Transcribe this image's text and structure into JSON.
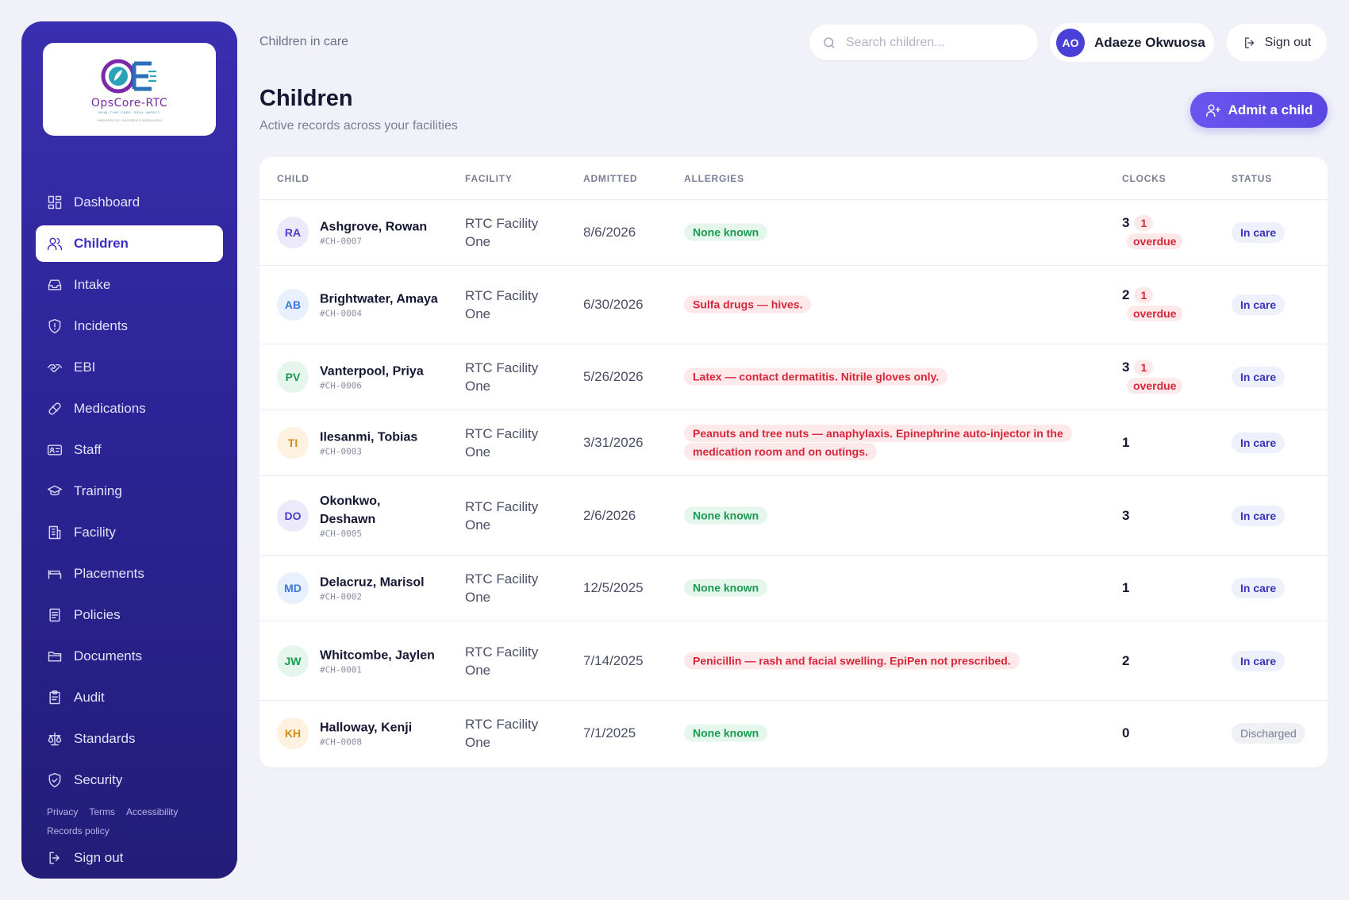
{
  "app": {
    "logo_name": "OpsCore-RTC",
    "logo_tagline": "REAL TIME CARE. REAL IMPACT",
    "logo_sub": "THERAPEUTIC CHILDREN'S ENDEAVORS"
  },
  "sidebar": {
    "items": [
      {
        "label": "Dashboard",
        "icon": "dashboard-icon",
        "active": false
      },
      {
        "label": "Children",
        "icon": "users-icon",
        "active": true
      },
      {
        "label": "Intake",
        "icon": "inbox-icon",
        "active": false
      },
      {
        "label": "Incidents",
        "icon": "shield-alert-icon",
        "active": false
      },
      {
        "label": "EBI",
        "icon": "handshake-icon",
        "active": false
      },
      {
        "label": "Medications",
        "icon": "pill-icon",
        "active": false
      },
      {
        "label": "Staff",
        "icon": "id-card-icon",
        "active": false
      },
      {
        "label": "Training",
        "icon": "graduation-cap-icon",
        "active": false
      },
      {
        "label": "Facility",
        "icon": "building-icon",
        "active": false
      },
      {
        "label": "Placements",
        "icon": "bed-icon",
        "active": false
      },
      {
        "label": "Policies",
        "icon": "document-icon",
        "active": false
      },
      {
        "label": "Documents",
        "icon": "folder-icon",
        "active": false
      },
      {
        "label": "Audit",
        "icon": "clipboard-icon",
        "active": false
      },
      {
        "label": "Standards",
        "icon": "scale-icon",
        "active": false
      },
      {
        "label": "Security",
        "icon": "shield-check-icon",
        "active": false
      }
    ],
    "footer_links": [
      "Privacy",
      "Terms",
      "Accessibility",
      "Records policy"
    ],
    "signout_label": "Sign out"
  },
  "header": {
    "breadcrumb": "Children in care",
    "search_placeholder": "Search children...",
    "user_initials": "AO",
    "user_name": "Adaeze Okwuosa",
    "signout_label": "Sign out"
  },
  "page": {
    "title": "Children",
    "subtitle": "Active records across your facilities",
    "admit_label": "Admit a child"
  },
  "table": {
    "columns": [
      "CHILD",
      "FACILITY",
      "ADMITTED",
      "ALLERGIES",
      "CLOCKS",
      "STATUS"
    ],
    "rows": [
      {
        "initials": "RA",
        "name": "Ashgrove, Rowan",
        "id": "#CH-0007",
        "facility": "RTC Facility One",
        "admitted": "8/6/2026",
        "allergy": "None known",
        "allergy_type": "none",
        "clocks": "3",
        "overdue": "1 overdue",
        "status": "In care",
        "status_type": "incare",
        "avatar_bg": "#ece9fb",
        "avatar_fg": "#4a3fc4"
      },
      {
        "initials": "AB",
        "name": "Brightwater, Amaya",
        "id": "#CH-0004",
        "facility": "RTC Facility One",
        "admitted": "6/30/2026",
        "allergy": "Sulfa drugs — hives.",
        "allergy_type": "alert",
        "clocks": "2",
        "overdue": "1 overdue",
        "status": "In care",
        "status_type": "incare",
        "avatar_bg": "#e7f0fc",
        "avatar_fg": "#3b7ad8"
      },
      {
        "initials": "PV",
        "name": "Vanterpool, Priya",
        "id": "#CH-0006",
        "facility": "RTC Facility One",
        "admitted": "5/26/2026",
        "allergy": "Latex — contact dermatitis. Nitrile gloves only.",
        "allergy_type": "alert",
        "clocks": "3",
        "overdue": "1 overdue",
        "status": "In care",
        "status_type": "incare",
        "avatar_bg": "#e5f6ec",
        "avatar_fg": "#1c9a52"
      },
      {
        "initials": "TI",
        "name": "Ilesanmi, Tobias",
        "id": "#CH-0003",
        "facility": "RTC Facility One",
        "admitted": "3/31/2026",
        "allergy": "Peanuts and tree nuts — anaphylaxis. Epinephrine auto-injector in the medication room and on outings.",
        "allergy_type": "alert",
        "clocks": "1",
        "overdue": "",
        "status": "In care",
        "status_type": "incare",
        "avatar_bg": "#fdf1df",
        "avatar_fg": "#d68a1c"
      },
      {
        "initials": "DO",
        "name": "Okonkwo, Deshawn",
        "id": "#CH-0005",
        "facility": "RTC Facility One",
        "admitted": "2/6/2026",
        "allergy": "None known",
        "allergy_type": "none",
        "clocks": "3",
        "overdue": "",
        "status": "In care",
        "status_type": "incare",
        "avatar_bg": "#ece9fb",
        "avatar_fg": "#4a3fc4"
      },
      {
        "initials": "MD",
        "name": "Delacruz, Marisol",
        "id": "#CH-0002",
        "facility": "RTC Facility One",
        "admitted": "12/5/2025",
        "allergy": "None known",
        "allergy_type": "none",
        "clocks": "1",
        "overdue": "",
        "status": "In care",
        "status_type": "incare",
        "avatar_bg": "#e7f0fc",
        "avatar_fg": "#3b7ad8"
      },
      {
        "initials": "JW",
        "name": "Whitcombe, Jaylen",
        "id": "#CH-0001",
        "facility": "RTC Facility One",
        "admitted": "7/14/2025",
        "allergy": "Penicillin — rash and facial swelling. EpiPen not prescribed.",
        "allergy_type": "alert",
        "clocks": "2",
        "overdue": "",
        "status": "In care",
        "status_type": "incare",
        "avatar_bg": "#e5f6ec",
        "avatar_fg": "#1c9a52"
      },
      {
        "initials": "KH",
        "name": "Halloway, Kenji",
        "id": "#CH-0008",
        "facility": "RTC Facility One",
        "admitted": "7/1/2025",
        "allergy": "None known",
        "allergy_type": "none",
        "clocks": "0",
        "overdue": "",
        "status": "Discharged",
        "status_type": "discharged",
        "avatar_bg": "#fdf1df",
        "avatar_fg": "#d68a1c"
      }
    ]
  },
  "colors": {
    "accent": "#5a46e2",
    "sidebar": "#2c2496",
    "alert": "#d6283c",
    "success": "#1c9a52"
  }
}
